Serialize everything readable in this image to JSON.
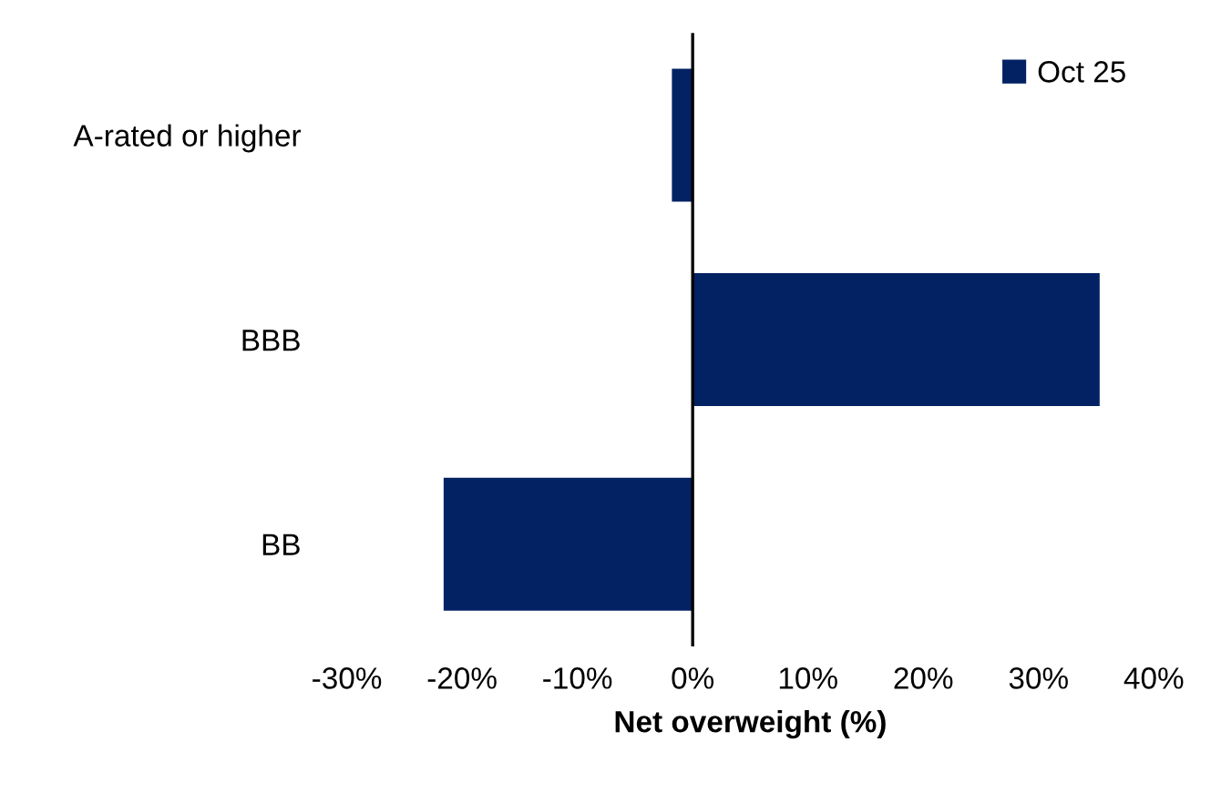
{
  "chart_data": {
    "type": "bar",
    "orientation": "horizontal",
    "xlabel": "Net overweight (%)",
    "categories": [
      "A-rated or higher",
      "BBB",
      "BB"
    ],
    "series": [
      {
        "name": "Oct 25",
        "color": "#032263",
        "values": [
          -1.8,
          35.3,
          -21.6
        ]
      }
    ],
    "xlim": [
      -30,
      40
    ],
    "xticks": [
      {
        "value": -30,
        "label": "-30%"
      },
      {
        "value": -20,
        "label": "-20%"
      },
      {
        "value": -10,
        "label": "-10%"
      },
      {
        "value": 0,
        "label": "0%"
      },
      {
        "value": 10,
        "label": "10%"
      },
      {
        "value": 20,
        "label": "20%"
      },
      {
        "value": 30,
        "label": "30%"
      },
      {
        "value": 40,
        "label": "40%"
      }
    ],
    "ref_lines": [
      {
        "axis": "x",
        "value": 0,
        "color": "#000000",
        "line_style": "solid"
      }
    ],
    "legend": "top right"
  }
}
